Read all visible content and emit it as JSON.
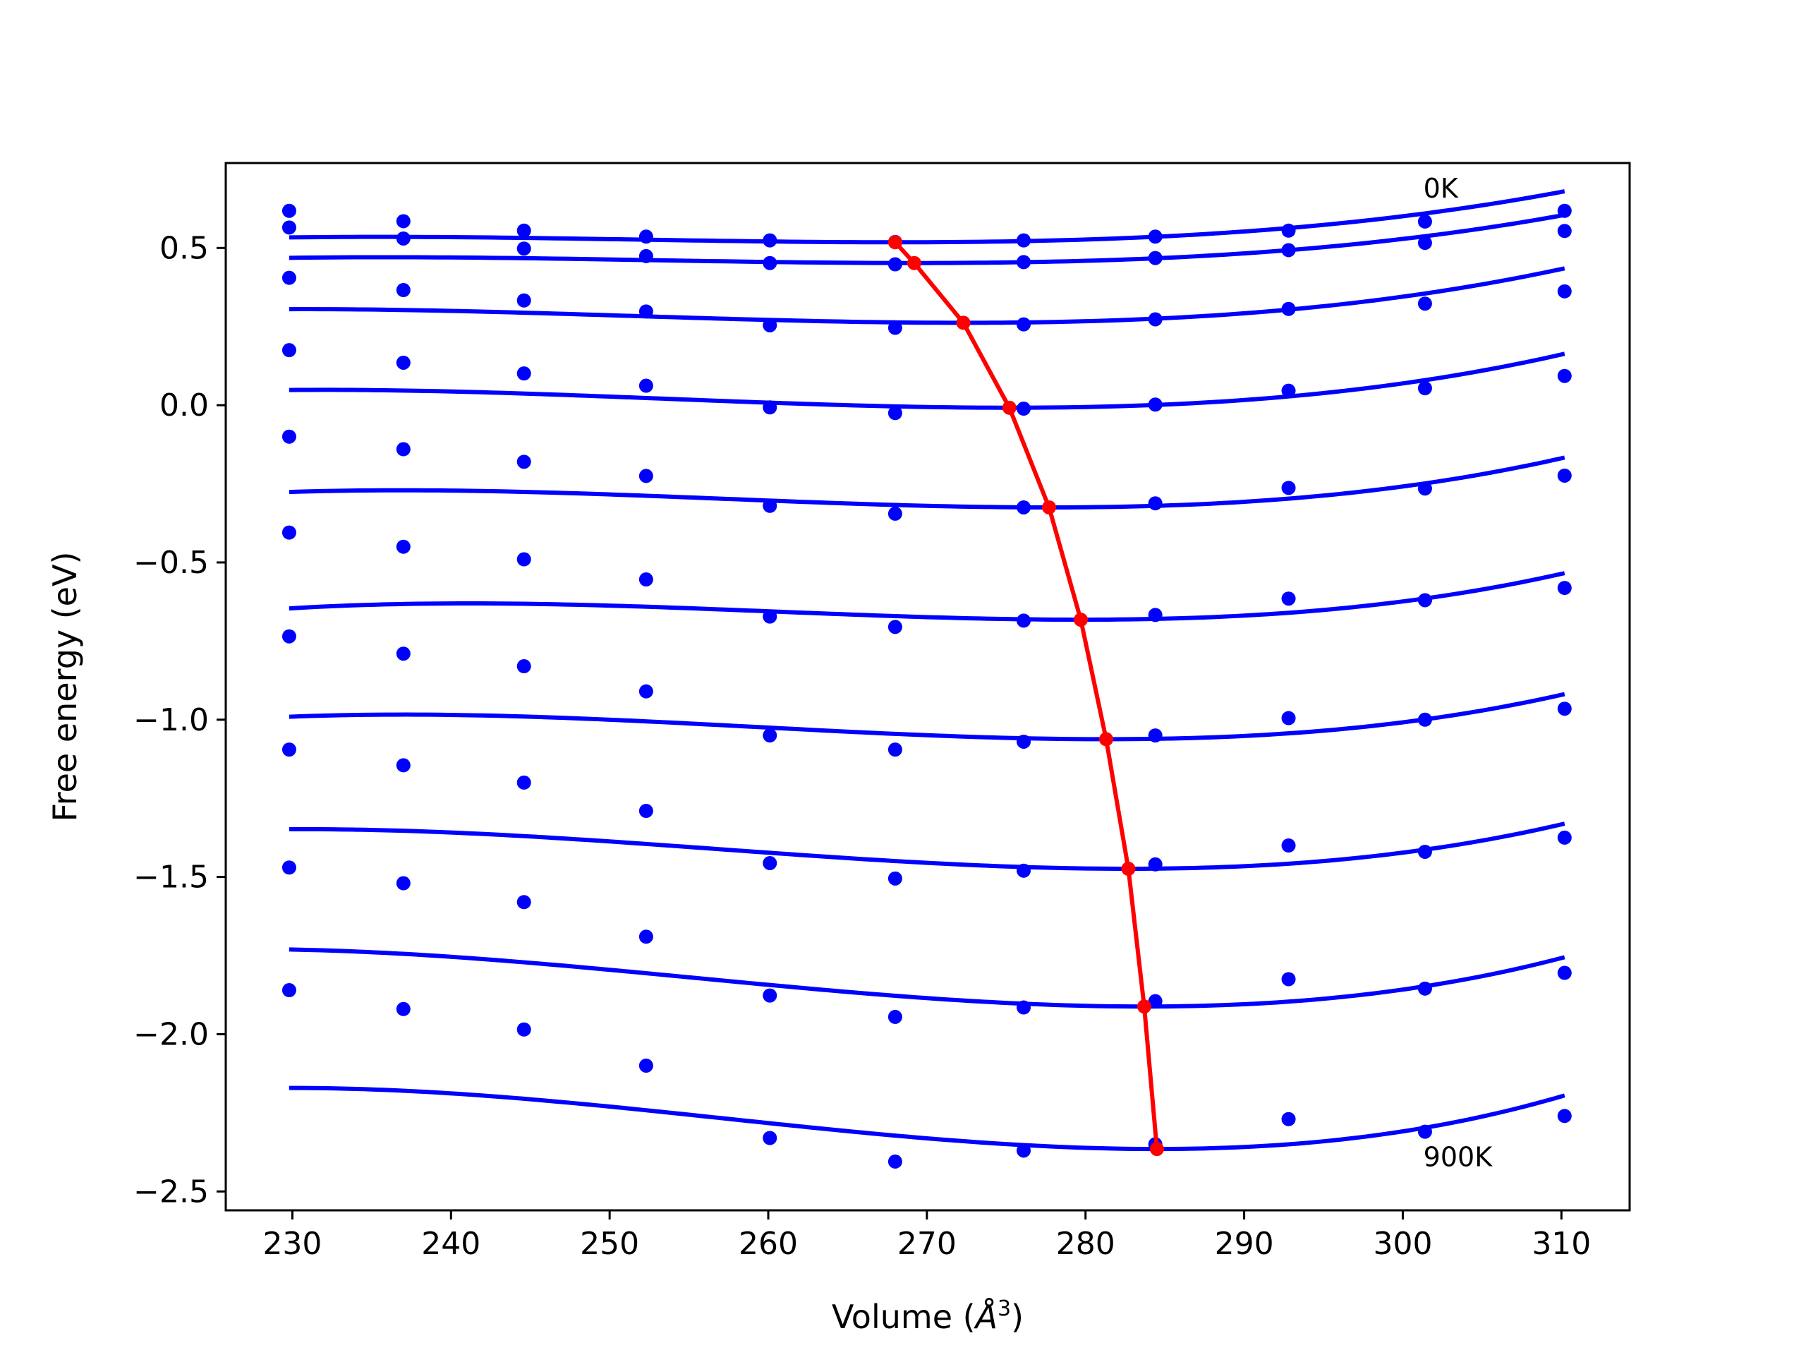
{
  "chart_data": {
    "type": "scatter",
    "title": "",
    "xlabel_main": "Volume (",
    "xlabel_unit": "Å",
    "xlabel_exp": "3",
    "xlabel_close": ")",
    "ylabel": "Free energy (eV)",
    "xlim": [
      225.8,
      314.3
    ],
    "ylim": [
      -2.56,
      0.77
    ],
    "xticks": [
      230,
      240,
      250,
      260,
      270,
      280,
      290,
      300,
      310
    ],
    "xtick_labels": [
      "230",
      "240",
      "250",
      "260",
      "270",
      "280",
      "290",
      "300",
      "310"
    ],
    "yticks": [
      0.5,
      0.0,
      -0.5,
      -1.0,
      -1.5,
      -2.0,
      -2.5
    ],
    "ytick_labels": [
      "0.5",
      "0.0",
      "−0.5",
      "−1.0",
      "−1.5",
      "−2.0",
      "−2.5"
    ],
    "grid": false,
    "legend": "none",
    "colors": {
      "points": "#0000ff",
      "fits": "#0000ff",
      "minimum_path": "#ff0000",
      "axes": "#000000"
    },
    "annotations": [
      {
        "text": "0K",
        "x": 301.3,
        "y": 0.66
      },
      {
        "text": "900K",
        "x": 301.3,
        "y": -2.42
      }
    ],
    "volumes": [
      229.8,
      237.0,
      244.6,
      252.3,
      260.1,
      268.0,
      276.1,
      284.4,
      292.8,
      301.4,
      310.2
    ],
    "series": [
      {
        "label": "0K",
        "values": [
          0.618,
          0.585,
          0.555,
          0.536,
          0.524,
          0.519,
          0.524,
          0.536,
          0.555,
          0.584,
          0.618
        ],
        "fit": {
          "vmin": 268.0,
          "emin": 0.518,
          "a": 4.88e-05,
          "b": 1e-06
        }
      },
      {
        "values": [
          0.565,
          0.53,
          0.498,
          0.474,
          0.452,
          0.448,
          0.455,
          0.468,
          0.493,
          0.516,
          0.554
        ],
        "fit": {
          "vmin": 269.2,
          "emin": 0.452,
          "a": 5e-05,
          "b": 1e-06
        }
      },
      {
        "values": [
          0.405,
          0.366,
          0.333,
          0.298,
          0.254,
          0.246,
          0.257,
          0.273,
          0.306,
          0.323,
          0.362
        ],
        "fit": {
          "vmin": 272.3,
          "emin": 0.262,
          "a": 7.5e-05,
          "b": 1.2e-06
        }
      },
      {
        "values": [
          0.175,
          0.135,
          0.101,
          0.062,
          -0.007,
          -0.025,
          -0.011,
          0.002,
          0.046,
          0.054,
          0.093
        ],
        "fit": {
          "vmin": 275.2,
          "emin": -0.008,
          "a": 9.09e-05,
          "b": 1.4e-06
        }
      },
      {
        "values": [
          -0.1,
          -0.14,
          -0.18,
          -0.225,
          -0.32,
          -0.345,
          -0.325,
          -0.312,
          -0.263,
          -0.265,
          -0.224
        ],
        "fit": {
          "vmin": 277.7,
          "emin": -0.325,
          "a": 9.8e-05,
          "b": 1.6e-06
        }
      },
      {
        "values": [
          -0.405,
          -0.45,
          -0.49,
          -0.554,
          -0.672,
          -0.705,
          -0.685,
          -0.667,
          -0.615,
          -0.62,
          -0.581
        ],
        "fit": {
          "vmin": 279.7,
          "emin": -0.682,
          "a": 0.0001042,
          "b": 1.8e-06
        }
      },
      {
        "values": [
          -0.735,
          -0.79,
          -0.83,
          -0.91,
          -1.05,
          -1.095,
          -1.07,
          -1.05,
          -0.995,
          -1.0,
          -0.965
        ],
        "fit": {
          "vmin": 281.3,
          "emin": -1.062,
          "a": 0.0001196,
          "b": 1.8e-06
        }
      },
      {
        "values": [
          -1.095,
          -1.145,
          -1.2,
          -1.29,
          -1.456,
          -1.505,
          -1.48,
          -1.46,
          -1.4,
          -1.42,
          -1.375
        ],
        "fit": {
          "vmin": 282.7,
          "emin": -1.474,
          "a": 0.0001401,
          "b": 1.8e-06
        }
      },
      {
        "values": [
          -1.47,
          -1.52,
          -1.58,
          -1.69,
          -1.877,
          -1.945,
          -1.915,
          -1.895,
          -1.825,
          -1.855,
          -1.805
        ],
        "fit": {
          "vmin": 283.7,
          "emin": -1.912,
          "a": 0.0001702,
          "b": 2e-06
        }
      },
      {
        "label": "900K",
        "values": [
          -1.86,
          -1.92,
          -1.985,
          -2.1,
          -2.33,
          -2.405,
          -2.37,
          -2.35,
          -2.27,
          -2.31,
          -2.26
        ],
        "fit": {
          "vmin": 284.5,
          "emin": -2.365,
          "a": 0.0001961,
          "b": 2.4e-06
        }
      }
    ],
    "minimum_path": {
      "x": [
        268.0,
        269.2,
        272.3,
        275.2,
        277.7,
        279.7,
        281.3,
        282.7,
        283.7,
        284.5
      ],
      "y": [
        0.518,
        0.452,
        0.262,
        -0.008,
        -0.325,
        -0.682,
        -1.062,
        -1.474,
        -1.912,
        -2.365
      ]
    }
  }
}
